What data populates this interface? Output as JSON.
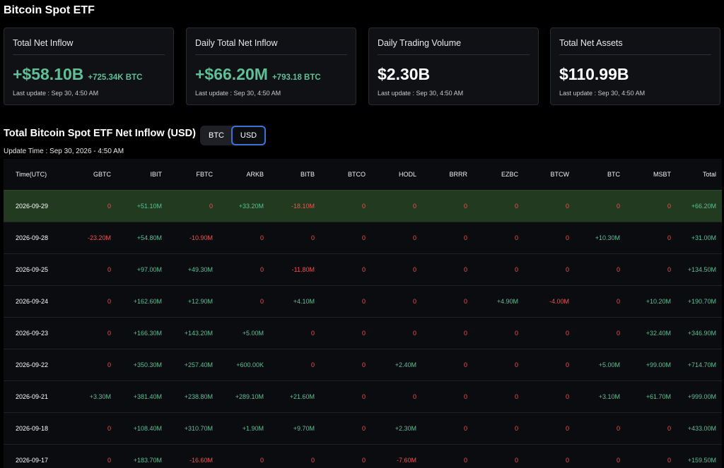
{
  "page_title": "Bitcoin Spot ETF",
  "cards": [
    {
      "title": "Total Net Inflow",
      "value": "+$58.10B",
      "sub": "+725.34K BTC",
      "tone": "pos",
      "update": "Last update : Sep 30, 4:50 AM"
    },
    {
      "title": "Daily Total Net Inflow",
      "value": "+$66.20M",
      "sub": "+793.18 BTC",
      "tone": "pos",
      "update": "Last update : Sep 30, 4:50 AM"
    },
    {
      "title": "Daily Trading Volume",
      "value": "$2.30B",
      "sub": "",
      "tone": "white",
      "update": "Last update : Sep 30, 4:50 AM"
    },
    {
      "title": "Total Net Assets",
      "value": "$110.99B",
      "sub": "",
      "tone": "white",
      "update": "Last update : Sep 30, 4:50 AM"
    }
  ],
  "section": {
    "title": "Total Bitcoin Spot ETF Net Inflow (USD)",
    "toggle_btc": "BTC",
    "toggle_usd": "USD",
    "active_toggle": "USD",
    "update_time": "Update Time : Sep 30, 2026 - 4:50 AM"
  },
  "colors": {
    "positive": "#5fbf96",
    "negative": "#ef5350",
    "highlight_row": "#223a20",
    "accent": "#3874d8"
  },
  "table": {
    "columns": [
      "Time(UTC)",
      "GBTC",
      "IBIT",
      "FBTC",
      "ARKB",
      "BITB",
      "BTCO",
      "HODL",
      "BRRR",
      "EZBC",
      "BTCW",
      "BTC",
      "MSBT",
      "Total"
    ],
    "rows": [
      {
        "date": "2026-09-29",
        "highlight": true,
        "cells": [
          "0",
          "+51.10M",
          "0",
          "+33.20M",
          "-18.10M",
          "0",
          "0",
          "0",
          "0",
          "0",
          "0",
          "0",
          "+66.20M"
        ]
      },
      {
        "date": "2026-09-28",
        "highlight": false,
        "cells": [
          "-23.20M",
          "+54.80M",
          "-10.90M",
          "0",
          "0",
          "0",
          "0",
          "0",
          "0",
          "0",
          "+10.30M",
          "0",
          "+31.00M"
        ]
      },
      {
        "date": "2026-09-25",
        "highlight": false,
        "cells": [
          "0",
          "+97.00M",
          "+49.30M",
          "0",
          "-11.80M",
          "0",
          "0",
          "0",
          "0",
          "0",
          "0",
          "0",
          "+134.50M"
        ]
      },
      {
        "date": "2026-09-24",
        "highlight": false,
        "cells": [
          "0",
          "+162.60M",
          "+12.90M",
          "0",
          "+4.10M",
          "0",
          "0",
          "0",
          "+4.90M",
          "-4.00M",
          "0",
          "+10.20M",
          "+190.70M"
        ]
      },
      {
        "date": "2026-09-23",
        "highlight": false,
        "cells": [
          "0",
          "+166.30M",
          "+143.20M",
          "+5.00M",
          "0",
          "0",
          "0",
          "0",
          "0",
          "0",
          "0",
          "+32.40M",
          "+346.90M"
        ]
      },
      {
        "date": "2026-09-22",
        "highlight": false,
        "cells": [
          "0",
          "+350.30M",
          "+257.40M",
          "+600.00K",
          "0",
          "0",
          "+2.40M",
          "0",
          "0",
          "0",
          "+5.00M",
          "+99.00M",
          "+714.70M"
        ]
      },
      {
        "date": "2026-09-21",
        "highlight": false,
        "cells": [
          "+3.30M",
          "+381.40M",
          "+238.80M",
          "+289.10M",
          "+21.60M",
          "0",
          "0",
          "0",
          "0",
          "0",
          "+3.10M",
          "+61.70M",
          "+999.00M"
        ]
      },
      {
        "date": "2026-09-18",
        "highlight": false,
        "cells": [
          "0",
          "+108.40M",
          "+310.70M",
          "+1.90M",
          "+9.70M",
          "0",
          "+2.30M",
          "0",
          "0",
          "0",
          "0",
          "0",
          "+433.00M"
        ]
      },
      {
        "date": "2026-09-17",
        "highlight": false,
        "cells": [
          "0",
          "+183.70M",
          "-16.60M",
          "0",
          "0",
          "0",
          "-7.60M",
          "0",
          "0",
          "0",
          "0",
          "0",
          "+159.50M"
        ]
      }
    ]
  }
}
